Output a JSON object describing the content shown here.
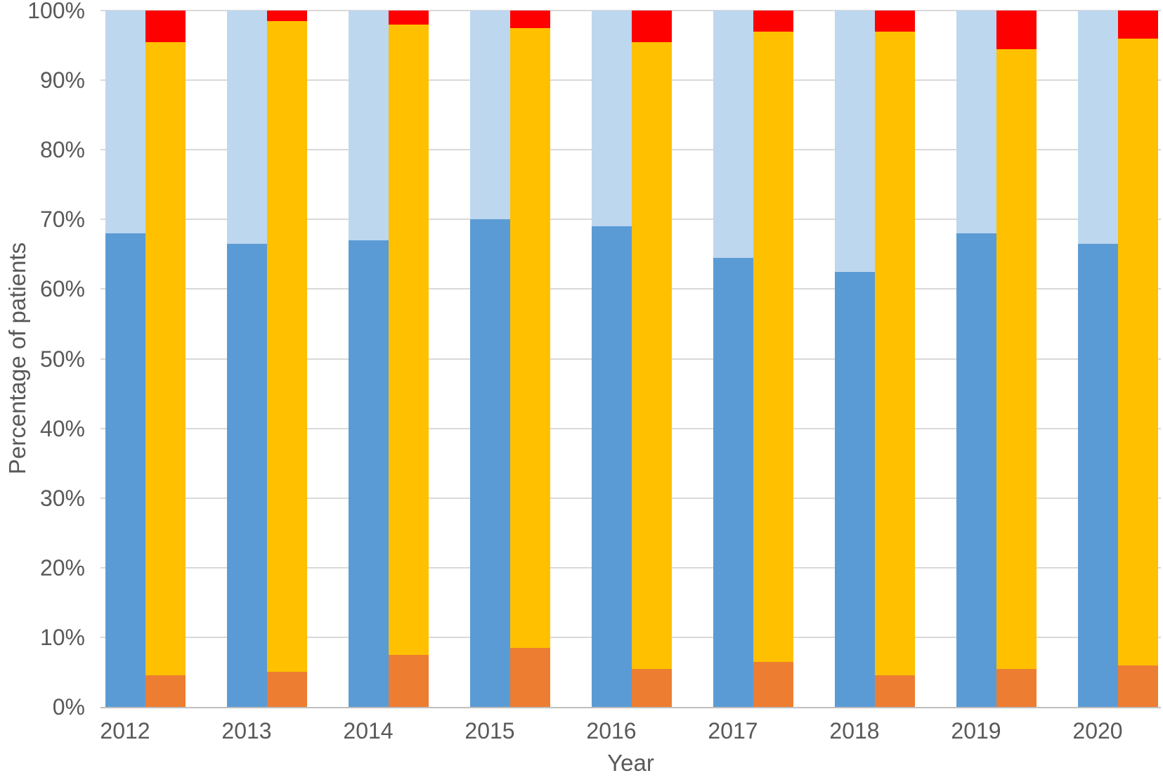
{
  "chart_data": {
    "type": "bar",
    "subtype": "grouped-100pct-stacked-columns",
    "title": "",
    "xlabel": "Year",
    "ylabel": "Percentage of patients",
    "ylim": [
      0,
      100
    ],
    "yticks": [
      "0%",
      "10%",
      "20%",
      "30%",
      "40%",
      "50%",
      "60%",
      "70%",
      "80%",
      "90%",
      "100%"
    ],
    "grid": true,
    "legend_position": "none",
    "categories": [
      "2012",
      "2013",
      "2014",
      "2015",
      "2016",
      "2017",
      "2018",
      "2019",
      "2020"
    ],
    "bar_groups": [
      {
        "name": "left-bar",
        "series": [
          {
            "name": "dark-blue",
            "color": "#5B9BD5",
            "values": [
              68,
              66.5,
              67,
              70,
              69,
              64.5,
              62.5,
              68,
              66.5
            ]
          },
          {
            "name": "light-blue",
            "color": "#BDD7EE",
            "values": [
              32,
              33.5,
              33,
              30,
              31,
              35.5,
              37.5,
              32,
              33.5
            ]
          }
        ]
      },
      {
        "name": "right-bar",
        "series": [
          {
            "name": "orange",
            "color": "#ED7D31",
            "values": [
              4.5,
              5,
              7.5,
              8.5,
              5.5,
              6.5,
              4.5,
              5.5,
              6
            ]
          },
          {
            "name": "gold",
            "color": "#FFC000",
            "values": [
              91,
              93.5,
              90.5,
              89,
              90,
              90.5,
              92.5,
              89,
              90
            ]
          },
          {
            "name": "red",
            "color": "#FF0000",
            "values": [
              4.5,
              1.5,
              2,
              2.5,
              4.5,
              3,
              3,
              5.5,
              4
            ]
          }
        ]
      }
    ],
    "colors": {
      "grid": "#D9D9D9",
      "axis": "#BFBFBF",
      "text": "#595959",
      "background": "#FFFFFF"
    }
  }
}
